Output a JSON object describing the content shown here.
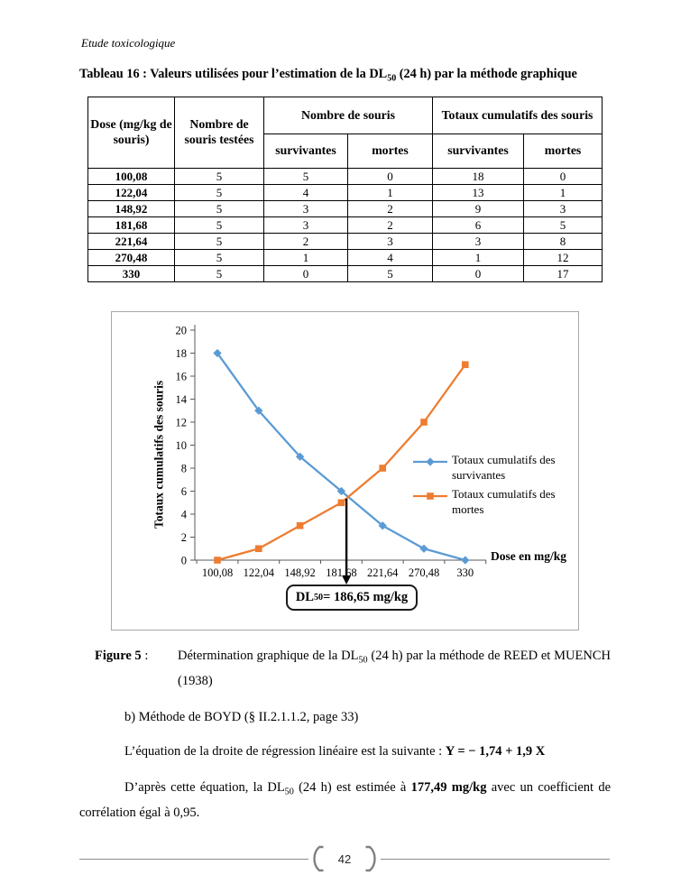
{
  "page": {
    "running_title": "Etude toxicologique",
    "page_number": "42"
  },
  "table": {
    "title": {
      "pre": "Tableau 16 : Valeurs utilisées pour l’estimation de la DL",
      "sub": "50",
      "post": " (24 h) par la méthode graphique"
    },
    "headers": {
      "dose": "Dose (mg/kg de souris)",
      "tested": "Nombre de souris testées",
      "group_count": "Nombre de souris",
      "group_cumulative": "Totaux cumulatifs des souris",
      "survivors": "survivantes",
      "dead": "mortes"
    },
    "rows": [
      [
        "100,08",
        "5",
        "5",
        "0",
        "18",
        "0"
      ],
      [
        "122,04",
        "5",
        "4",
        "1",
        "13",
        "1"
      ],
      [
        "148,92",
        "5",
        "3",
        "2",
        "9",
        "3"
      ],
      [
        "181,68",
        "5",
        "3",
        "2",
        "6",
        "5"
      ],
      [
        "221,64",
        "5",
        "2",
        "3",
        "3",
        "8"
      ],
      [
        "270,48",
        "5",
        "1",
        "4",
        "1",
        "12"
      ],
      [
        "330",
        "5",
        "0",
        "5",
        "0",
        "17"
      ]
    ]
  },
  "chart_data": {
    "type": "line",
    "categories": [
      "100,08",
      "122,04",
      "148,92",
      "181,68",
      "221,64",
      "270,48",
      "330"
    ],
    "series": [
      {
        "name": "Totaux cumulatifs des survivantes",
        "values": [
          18,
          13,
          9,
          6,
          3,
          1,
          0
        ],
        "color": "#5B9BD5",
        "marker": "diamond"
      },
      {
        "name": "Totaux cumulatifs des mortes",
        "values": [
          0,
          1,
          3,
          5,
          8,
          12,
          17
        ],
        "color": "#ED7D31",
        "marker": "square"
      }
    ],
    "title": "",
    "xlabel": "Dose en mg/kg",
    "ylabel": "Totaux cumulatifs des souris",
    "ylim": [
      0,
      20
    ],
    "ytick_step": 2,
    "grid": false,
    "legend_position": "middle-right",
    "annotation": {
      "pre": "DL",
      "sub": "50",
      "post": " = 186,65 mg/kg",
      "value_mg_kg": 186.65
    }
  },
  "figure_caption": {
    "label": "Figure 5",
    "colon": " :",
    "pre": "Détermination graphique de la DL",
    "sub": "50",
    "post": " (24 h) par la méthode de REED et MUENCH (1938)"
  },
  "body": {
    "item_b": "b) Méthode de BOYD (§ II.2.1.1.2, page 33)",
    "equation_pre": "L’équation de la droite de régression linéaire est la suivante : ",
    "equation": "Y = − 1,74 + 1,9 X",
    "conclusion": {
      "pre": "D’après cette équation, la DL",
      "sub": "50",
      "mid": " (24 h) est estimée à ",
      "bold": "177,49 mg/kg",
      "post": " avec un coefficient de corrélation égal à 0,95."
    }
  }
}
